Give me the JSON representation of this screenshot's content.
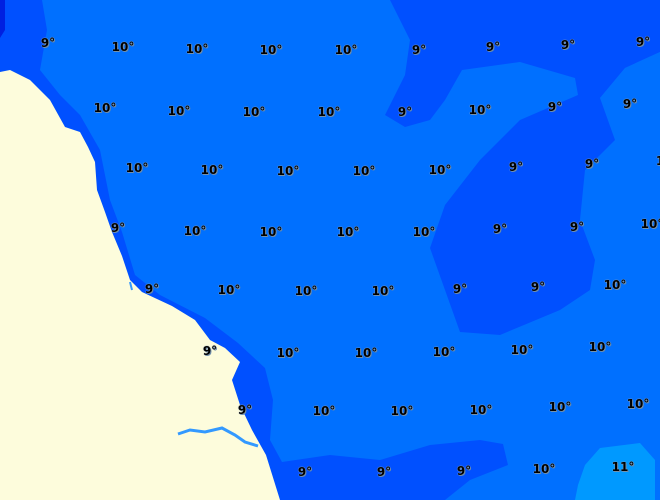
{
  "map": {
    "colors": {
      "sea_10": "#0070ff",
      "sea_9": "#0050ff",
      "sea_11": "#0099ff",
      "sea_deep": "#0020e0",
      "land": "#fdfcdc",
      "river": "#3399ff"
    },
    "labels": [
      "9°",
      "10°",
      "10°",
      "10°",
      "10°",
      "9°",
      "9°",
      "9°",
      "9°",
      "10°",
      "10°",
      "10°",
      "10°",
      "9°",
      "10°",
      "9°",
      "9°",
      "10°",
      "10°",
      "10°",
      "10°",
      "10°",
      "9°",
      "9°",
      "1",
      "9°",
      "10°",
      "10°",
      "10°",
      "10°",
      "9°",
      "9°",
      "10°",
      "9°",
      "10°",
      "10°",
      "10°",
      "9°",
      "9°",
      "10°",
      "9°",
      "10°",
      "10°",
      "10°",
      "10°",
      "10°",
      "9°",
      "10°",
      "10°",
      "10°",
      "10°",
      "10°",
      "9°",
      "9°",
      "9°",
      "10°",
      "11°"
    ]
  }
}
